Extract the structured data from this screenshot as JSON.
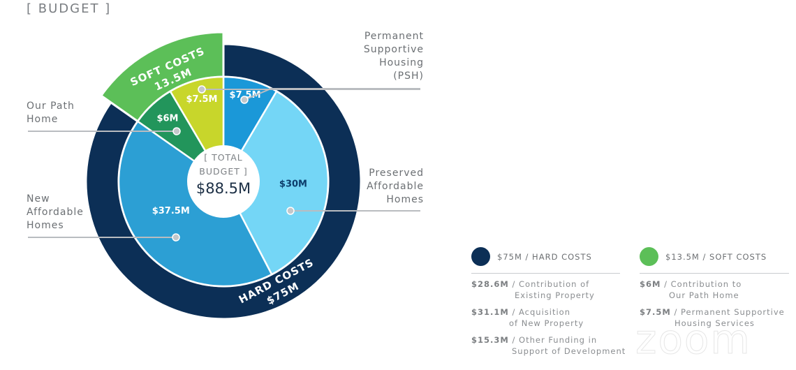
{
  "title": "[ BUDGET ]",
  "chart_data": {
    "type": "pie",
    "subtype": "nested-donut",
    "title": "[ BUDGET ]",
    "center_label": [
      "[ TOTAL",
      "BUDGET ]"
    ],
    "center_value": "$88.5M",
    "total": 88.5,
    "outer": [
      {
        "name": "HARD COSTS",
        "value": 75,
        "label": "$75M",
        "color": "#0c2f56"
      },
      {
        "name": "SOFT COSTS",
        "value": 13.5,
        "label": "13.5M",
        "color": "#5cbf58"
      }
    ],
    "inner": [
      {
        "name": "Permanent Supportive Housing (PSH)",
        "value": 7.5,
        "label": "$7.5M",
        "color": "#1b98d8",
        "text_color": "#ffffff"
      },
      {
        "name": "Preserved Affordable Homes",
        "value": 30,
        "label": "$30M",
        "color": "#74d6f6",
        "text_color": "#0c3d6b"
      },
      {
        "name": "New Affordable Homes",
        "value": 37.5,
        "label": "$37.5M",
        "color": "#2c9fd4",
        "text_color": "#ffffff"
      },
      {
        "name": "Our Path Home",
        "value": 6,
        "label": "$6M",
        "color": "#22955b",
        "text_color": "#ffffff"
      },
      {
        "name": "Permanent Supportive Housing Services",
        "value": 7.5,
        "label": "$7.5M",
        "color": "#c8d62b",
        "text_color": "#ffffff"
      }
    ]
  },
  "callouts": {
    "psh": [
      "Permanent",
      "Supportive",
      "Housing",
      "(PSH)"
    ],
    "our_path": [
      "Our Path",
      "Home"
    ],
    "new_affordable": [
      "New",
      "Affordable",
      "Homes"
    ],
    "preserved": [
      "Preserved",
      "Affordable",
      "Homes"
    ]
  },
  "legend": {
    "hard": {
      "heading": "$75M / HARD COSTS",
      "color": "#0c2f56",
      "items": [
        {
          "amount": "$28.6M",
          "line1": "/ Contribution of",
          "line2": "Existing Property"
        },
        {
          "amount": "$31.1M",
          "line1": "/ Acquisition",
          "line2": "of New Property"
        },
        {
          "amount": "$15.3M",
          "line1": "/ Other Funding in",
          "line2": "Support of Development"
        }
      ]
    },
    "soft": {
      "heading": "$13.5M / SOFT COSTS",
      "color": "#5cbf58",
      "items": [
        {
          "amount": "$6M",
          "line1": "/ Contribution to",
          "line2": "Our Path Home"
        },
        {
          "amount": "$7.5M",
          "line1": "/ Permanent Supportive",
          "line2": "Housing Services"
        }
      ]
    }
  },
  "watermark": "zoom"
}
